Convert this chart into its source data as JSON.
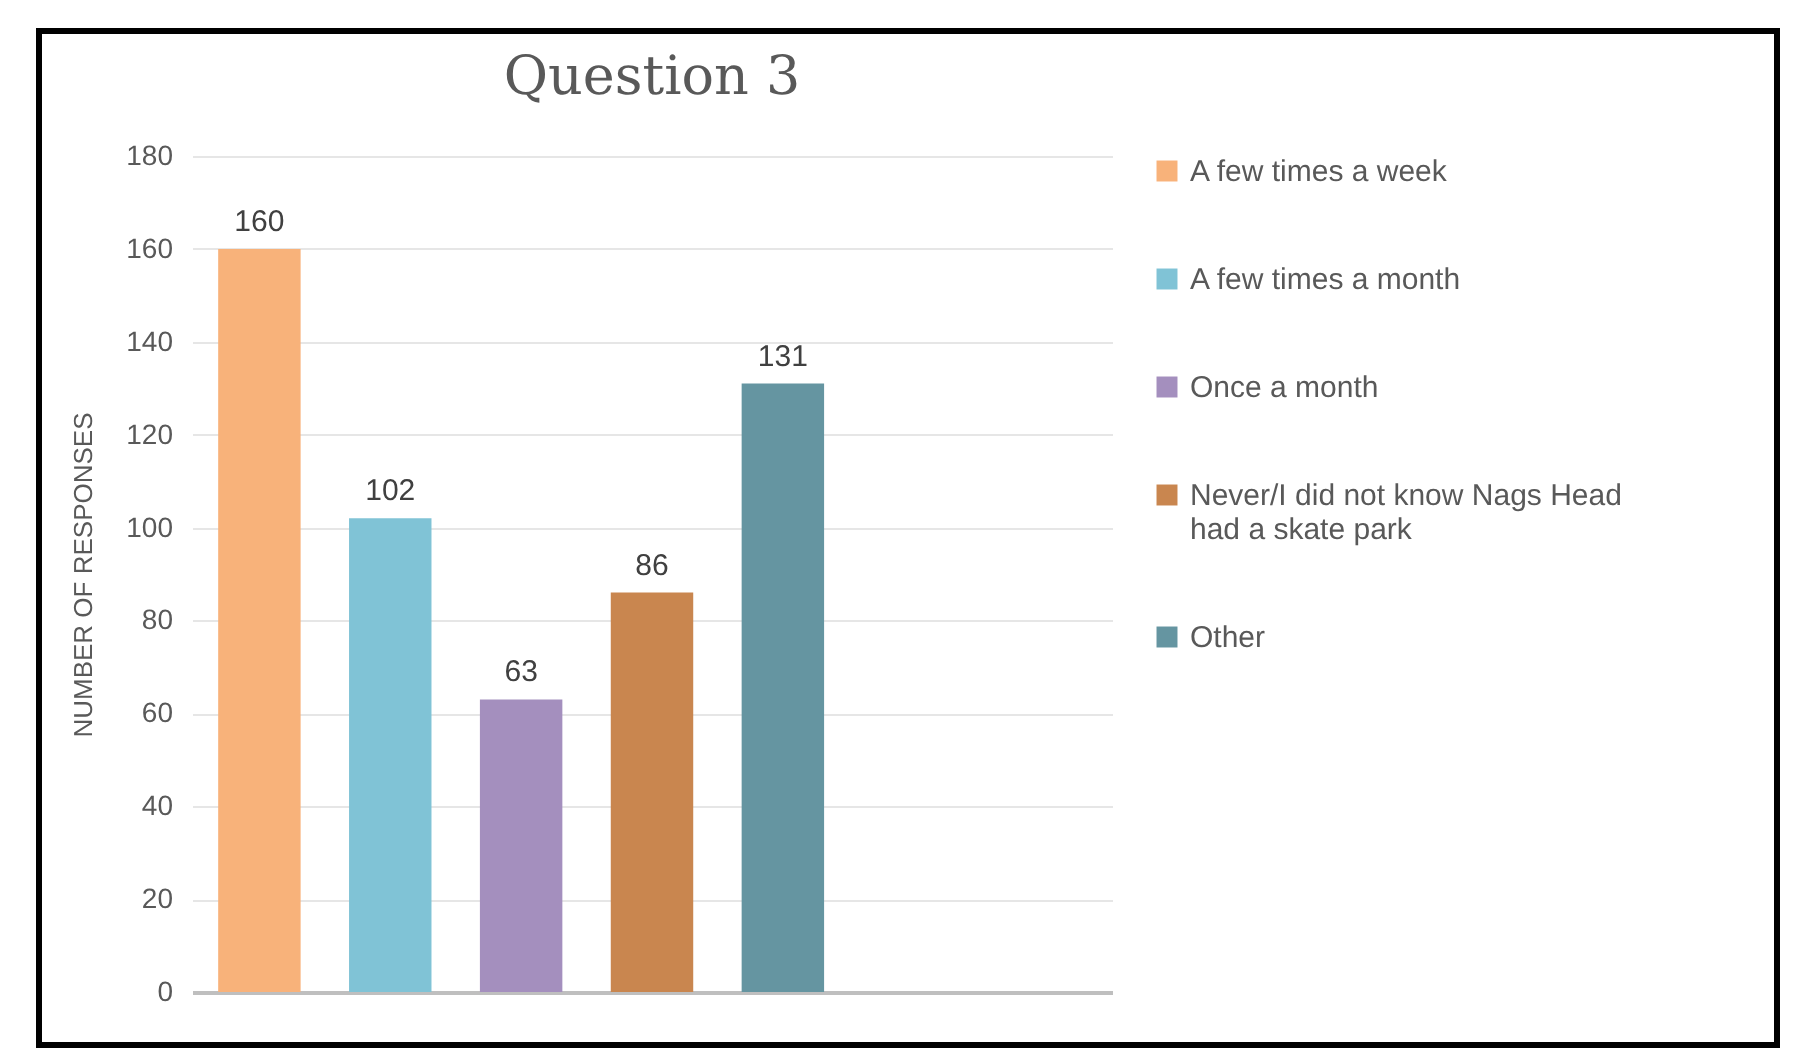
{
  "chart_data": {
    "type": "bar",
    "title": "Question 3",
    "ylabel": "NUMBER OF RESPONSES",
    "categories": [
      null,
      null,
      null,
      null,
      null,
      null,
      null
    ],
    "series": [
      {
        "name": "A few times a week",
        "color": "#f8b27a",
        "values": [
          160,
          null,
          null,
          null,
          null,
          null,
          null
        ]
      },
      {
        "name": "A few times a month",
        "color": "#80c3d6",
        "values": [
          null,
          102,
          null,
          null,
          null,
          null,
          null
        ]
      },
      {
        "name": "Once a month",
        "color": "#a48fbe",
        "values": [
          null,
          null,
          63,
          null,
          null,
          null,
          null
        ]
      },
      {
        "name": "Never/I did not know Nags Head had a skate park",
        "color": "#c9864f",
        "values": [
          null,
          null,
          null,
          86,
          null,
          null,
          null
        ]
      },
      {
        "name": "Other",
        "color": "#6595a1",
        "values": [
          null,
          null,
          null,
          null,
          131,
          null,
          null
        ]
      }
    ],
    "ylim": [
      0,
      180
    ],
    "yticks": [
      0,
      20,
      40,
      60,
      80,
      100,
      120,
      140,
      160,
      180
    ],
    "grid": "y",
    "legend": "right",
    "data_labels": true,
    "tick_labels": "y"
  }
}
